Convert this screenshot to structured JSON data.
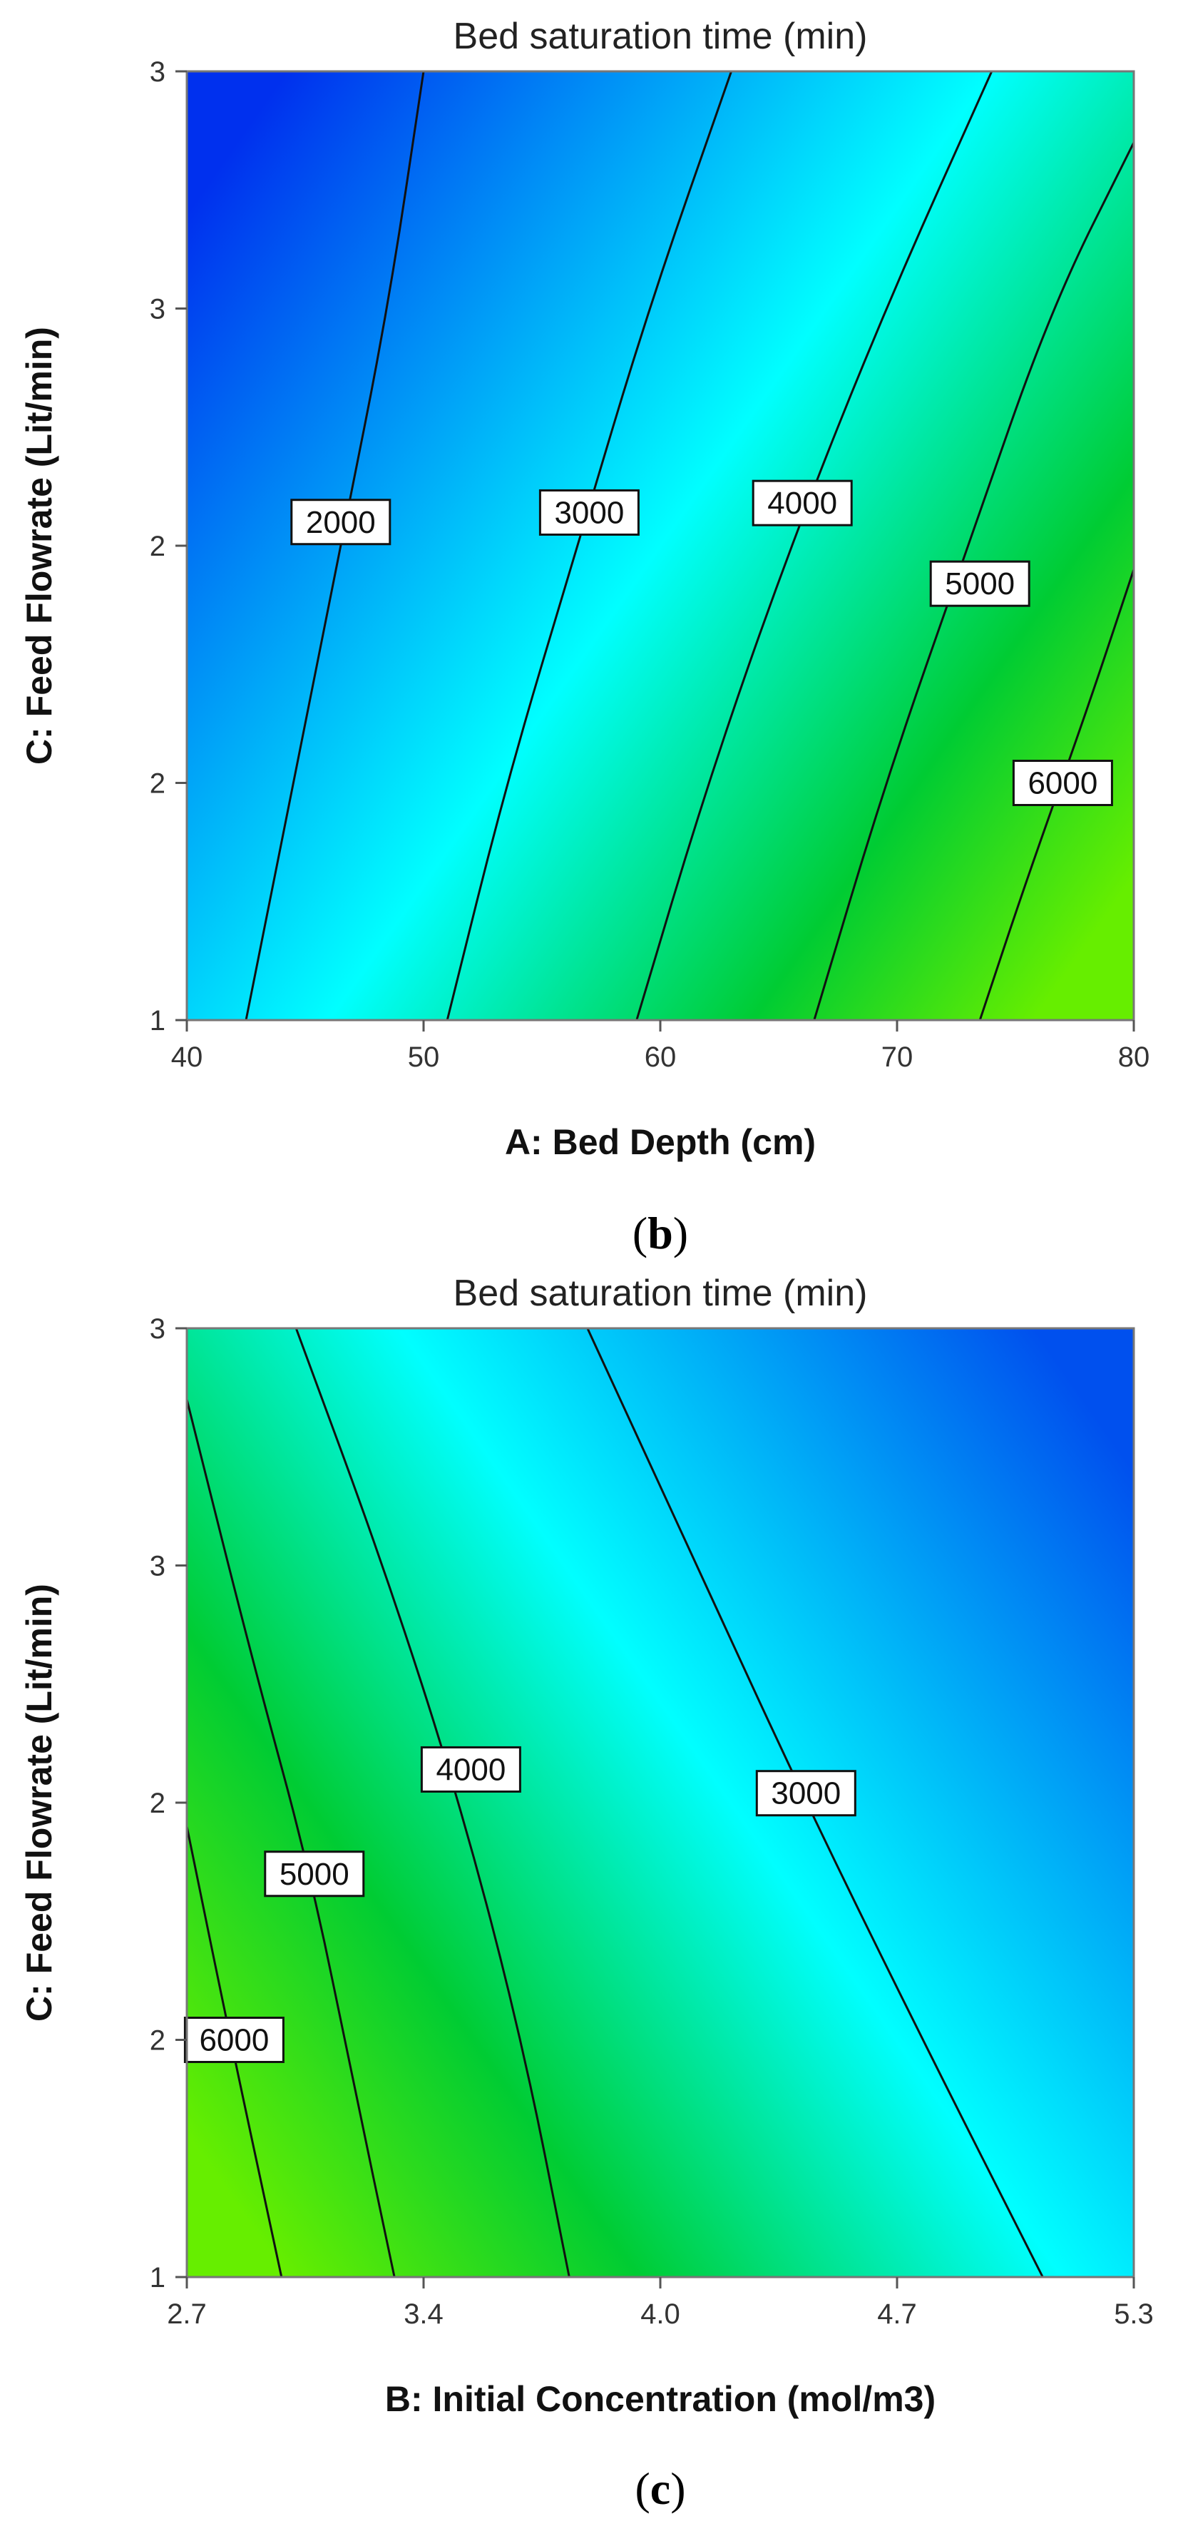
{
  "chart_data": [
    {
      "type": "contour",
      "panel_label": "b",
      "title": "Bed saturation time (min)",
      "xlabel": "A: Bed Depth (cm)",
      "ylabel": "C: Feed Flowrate (Lit/min)",
      "xlim": [
        40,
        80
      ],
      "ylim": [
        1,
        3
      ],
      "x_ticks": [
        40,
        50,
        60,
        70,
        80
      ],
      "x_tick_labels": [
        "40",
        "50",
        "60",
        "70",
        "80"
      ],
      "y_ticks": [
        1,
        1.5,
        2,
        2.5,
        3
      ],
      "y_tick_labels": [
        "1",
        "2",
        "2",
        "3",
        "3"
      ],
      "grid": false,
      "legend": "none",
      "colormap": [
        "#0030ee",
        "#00ffff",
        "#00cc33",
        "#66ee00"
      ],
      "contours": [
        {
          "level": 2000,
          "label": "2000",
          "points": [
            [
              42.5,
              1
            ],
            [
              44.5,
              1.5
            ],
            [
              46.5,
              2
            ],
            [
              48.5,
              2.5
            ],
            [
              50.0,
              3
            ]
          ],
          "label_at": [
            46.5,
            2.05
          ]
        },
        {
          "level": 3000,
          "label": "3000",
          "points": [
            [
              51.0,
              1
            ],
            [
              53.5,
              1.5
            ],
            [
              56.5,
              2
            ],
            [
              59.5,
              2.5
            ],
            [
              63.0,
              3
            ]
          ],
          "label_at": [
            57.0,
            2.07
          ]
        },
        {
          "level": 4000,
          "label": "4000",
          "points": [
            [
              59.0,
              1
            ],
            [
              62.0,
              1.5
            ],
            [
              65.5,
              2
            ],
            [
              69.5,
              2.5
            ],
            [
              74.0,
              3
            ]
          ],
          "label_at": [
            66.0,
            2.09
          ]
        },
        {
          "level": 5000,
          "label": "5000",
          "points": [
            [
              66.5,
              1
            ],
            [
              69.5,
              1.5
            ],
            [
              73.0,
              2
            ],
            [
              76.5,
              2.5
            ],
            [
              80.0,
              2.85
            ]
          ],
          "label_at": [
            73.5,
            1.92
          ]
        },
        {
          "level": 6000,
          "label": "6000",
          "points": [
            [
              73.5,
              1
            ],
            [
              75.5,
              1.3
            ],
            [
              78.0,
              1.65
            ],
            [
              80.0,
              1.95
            ]
          ],
          "label_at": [
            77.0,
            1.5
          ]
        }
      ]
    },
    {
      "type": "contour",
      "panel_label": "c",
      "title": "Bed saturation time (min)",
      "xlabel": "B: Initial Concentration (mol/m3)",
      "ylabel": "C: Feed Flowrate (Lit/min)",
      "xlim": [
        2.7,
        5.3
      ],
      "ylim": [
        1,
        3
      ],
      "x_ticks": [
        2.7,
        3.35,
        4.0,
        4.65,
        5.3
      ],
      "x_tick_labels": [
        "2.7",
        "3.4",
        "4.0",
        "4.7",
        "5.3"
      ],
      "y_ticks": [
        1,
        1.5,
        2,
        2.5,
        3
      ],
      "y_tick_labels": [
        "1",
        "2",
        "2",
        "3",
        "3"
      ],
      "grid": false,
      "legend": "none",
      "colormap": [
        "#66ee00",
        "#00cc33",
        "#00ffff",
        "#0050ee"
      ],
      "contours": [
        {
          "level": 3000,
          "label": "3000",
          "points": [
            [
              3.8,
              3
            ],
            [
              4.1,
              2.5
            ],
            [
              4.4,
              2
            ],
            [
              4.72,
              1.5
            ],
            [
              5.05,
              1
            ]
          ],
          "label_at": [
            4.4,
            2.02
          ]
        },
        {
          "level": 4000,
          "label": "4000",
          "points": [
            [
              3.0,
              3
            ],
            [
              3.24,
              2.5
            ],
            [
              3.45,
              2
            ],
            [
              3.62,
              1.5
            ],
            [
              3.75,
              1
            ]
          ],
          "label_at": [
            3.48,
            2.07
          ]
        },
        {
          "level": 5000,
          "label": "5000",
          "points": [
            [
              2.7,
              2.85
            ],
            [
              2.88,
              2.3
            ],
            [
              3.04,
              1.85
            ],
            [
              3.16,
              1.4
            ],
            [
              3.27,
              1
            ]
          ],
          "label_at": [
            3.05,
            1.85
          ]
        },
        {
          "level": 6000,
          "label": "6000",
          "points": [
            [
              2.7,
              1.95
            ],
            [
              2.82,
              1.5
            ],
            [
              2.96,
              1
            ]
          ],
          "label_at": [
            2.83,
            1.5
          ]
        }
      ]
    }
  ]
}
